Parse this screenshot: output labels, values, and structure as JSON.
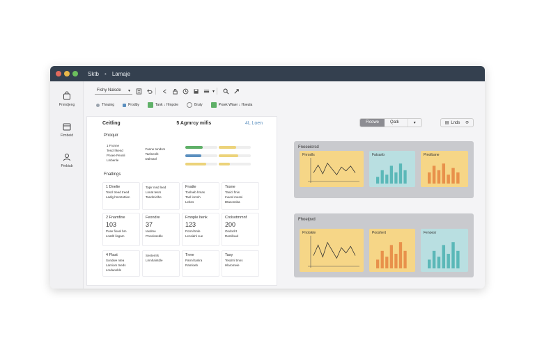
{
  "window": {
    "controls": [
      "#e26a5d",
      "#e8b84a",
      "#6cbf5d"
    ],
    "title": "Sktb",
    "subtitle": "Lamaje"
  },
  "sidebar": {
    "items": [
      {
        "icon": "bag-icon",
        "label": "Pnmdjeng"
      },
      {
        "icon": "calendar-icon",
        "label": "Ftmbeid"
      },
      {
        "icon": "people-icon",
        "label": "Pmbiab"
      }
    ]
  },
  "toolbar": {
    "select_label": "Fishy Nalsde",
    "icons": [
      "document-icon",
      "undo-icon",
      "pointer-icon",
      "lock-icon",
      "clock-icon",
      "save-icon",
      "list-icon",
      "search-icon",
      "expand-icon"
    ]
  },
  "toolbar2": {
    "items": [
      {
        "label": "Thnuing",
        "color": "#9aa3ad"
      },
      {
        "label": "Prodby",
        "color": "#5b8fbf"
      },
      {
        "label": "Tank ↓ Hmpole",
        "color": "#5fb068"
      },
      {
        "label": "Bruty",
        "color": "#8a8a8a"
      },
      {
        "label": "Proek Wiaer ↓ Hoeula",
        "color": "#5fb068"
      }
    ]
  },
  "left_panel": {
    "title": "Ceitling",
    "mid_title": "5 Agmrcy mifis",
    "link": "4L Loen",
    "section1": "Pnoquir",
    "section2": "Fnatlings",
    "row1": {
      "c1": [
        "1  Fronne",
        "Tescl hkend",
        "Pnsee Peonli",
        "Lmbenle"
      ],
      "c2": [
        "Fanne tondsm",
        "Taelnenlit",
        "Dalmanl"
      ],
      "bars": [
        {
          "color": "#5fb068",
          "fill": 0.55
        },
        {
          "color": "#ecd37a",
          "fill": 0.55
        },
        {
          "color": "#5b8fbf",
          "fill": 0.5
        },
        {
          "color": "#ecd37a",
          "fill": 0.6
        },
        {
          "color": "#ecd37a",
          "fill": 0.65
        },
        {
          "color": "#ecd37a",
          "fill": 0.35
        }
      ]
    },
    "row2": [
      {
        "hd": "1  Dnelie",
        "lines": [
          "Tescl treed treed",
          "Ladlg hmmtottien"
        ]
      },
      {
        "hd": "",
        "lines": [
          "Tapir msd lned",
          "Lnnat tesrs",
          "Tandmiclhe"
        ]
      },
      {
        "hd": "Fnatte",
        "lines": [
          "Tonlneb hmas",
          "Tanl lonmh",
          "Lebes"
        ]
      },
      {
        "hd": "Tosne",
        "lines": [
          "Tanicl fmis",
          "Inoesl mesni",
          "Dtasonsba"
        ]
      }
    ],
    "row3": [
      {
        "hd": "2  Fnamfine",
        "big": "103",
        "lines": [
          "Pose fisoel bm",
          "Lnatlrl lisgam"
        ]
      },
      {
        "hd": "Feondre",
        "big": "37",
        "lines": [
          "Iaxdme",
          "Pnnoloseble"
        ]
      },
      {
        "hd": "Fmnple Itenk",
        "big": "123",
        "lines": [
          "Porml tmle",
          "Lensidnl cue"
        ]
      },
      {
        "hd": "Crolsotmmnf",
        "big": "200",
        "lines": [
          "Ondoclrt",
          "Ramlloud"
        ]
      }
    ],
    "row4": [
      {
        "hd": "4  Flaat",
        "lines": [
          "Sondwe ntea",
          "Lanriom tneds",
          "Lmdaonbls"
        ]
      },
      {
        "hd": "",
        "lines": [
          "Sentemfs",
          "Lmnhaintdle"
        ]
      },
      {
        "hd": "Tnne",
        "lines": [
          "Parml tanlra",
          "Ramloeb"
        ]
      },
      {
        "hd": "Tasy",
        "lines": [
          "Tesdrnl tmns",
          "Hlaromeie"
        ]
      }
    ]
  },
  "right": {
    "view_tabs": [
      "Flcowe",
      "Qatk"
    ],
    "pill_label": "Lnds",
    "group1_label": "Fnoeeicrsd",
    "group2_label": "Fhoeipvd",
    "cards_top": [
      {
        "title": "Pnroslls",
        "color": "#f6d687",
        "kind": "line"
      },
      {
        "title": "Fatsanb",
        "color": "#b9dfe1",
        "kind": "bar"
      },
      {
        "title": "Pmolbane",
        "color": "#f6d687",
        "kind": "bar2"
      }
    ],
    "cards_bottom": [
      {
        "title": "Pnotskle",
        "color": "#f6d687",
        "kind": "line"
      },
      {
        "title": "Pooshert",
        "color": "#f6d687",
        "kind": "bar"
      },
      {
        "title": "Fenoesr",
        "color": "#b9dfe1",
        "kind": "bar"
      }
    ],
    "bar_colors": [
      "#e8914b",
      "#5bb8b8"
    ]
  }
}
